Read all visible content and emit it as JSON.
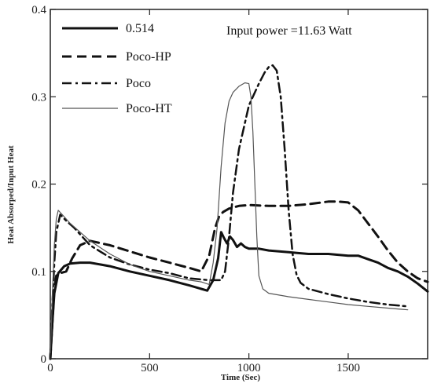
{
  "chart_data": {
    "type": "line",
    "title": "",
    "annotation": "Input power =11.63 Watt",
    "xlabel": "Time (Sec)",
    "ylabel": "Heat Absorped/Input Heat",
    "xlim": [
      0,
      1900
    ],
    "ylim": [
      0,
      0.4
    ],
    "xticks": [
      0,
      500,
      1000,
      1500
    ],
    "xtick_labels": [
      "0",
      "500",
      "1000",
      "1500"
    ],
    "yticks": [
      0,
      0.1,
      0.2,
      0.3,
      0.4
    ],
    "ytick_labels": [
      "0",
      "0.1",
      "0.2",
      "0.3",
      "0.4"
    ],
    "legend_position": "top-left",
    "grid": false,
    "series": [
      {
        "name": "0.514",
        "style": "solid-thick",
        "color": "#111111",
        "x": [
          0,
          10,
          20,
          40,
          70,
          100,
          150,
          200,
          300,
          400,
          500,
          600,
          700,
          760,
          790,
          820,
          845,
          860,
          875,
          890,
          905,
          920,
          940,
          960,
          980,
          1000,
          1050,
          1100,
          1200,
          1300,
          1400,
          1500,
          1550,
          1600,
          1650,
          1700,
          1750,
          1800,
          1850,
          1900
        ],
        "y": [
          0.0,
          0.04,
          0.075,
          0.098,
          0.106,
          0.109,
          0.11,
          0.11,
          0.106,
          0.1,
          0.095,
          0.09,
          0.084,
          0.08,
          0.078,
          0.09,
          0.115,
          0.145,
          0.138,
          0.132,
          0.14,
          0.136,
          0.128,
          0.132,
          0.128,
          0.126,
          0.126,
          0.124,
          0.122,
          0.12,
          0.12,
          0.118,
          0.118,
          0.114,
          0.11,
          0.104,
          0.1,
          0.094,
          0.086,
          0.077
        ]
      },
      {
        "name": "Poco-HP",
        "style": "dashed",
        "color": "#111111",
        "x": [
          0,
          10,
          20,
          30,
          50,
          80,
          110,
          150,
          200,
          300,
          400,
          500,
          600,
          700,
          760,
          800,
          830,
          850,
          870,
          900,
          950,
          1000,
          1100,
          1200,
          1300,
          1400,
          1450,
          1500,
          1550,
          1600,
          1650,
          1700,
          1750,
          1800,
          1850,
          1900
        ],
        "y": [
          0.0,
          0.04,
          0.08,
          0.095,
          0.098,
          0.1,
          0.115,
          0.13,
          0.135,
          0.13,
          0.123,
          0.116,
          0.11,
          0.104,
          0.1,
          0.118,
          0.15,
          0.163,
          0.168,
          0.172,
          0.175,
          0.176,
          0.175,
          0.175,
          0.177,
          0.18,
          0.18,
          0.179,
          0.17,
          0.155,
          0.14,
          0.124,
          0.11,
          0.1,
          0.092,
          0.088
        ]
      },
      {
        "name": "Poco",
        "style": "dash-dot",
        "color": "#111111",
        "x": [
          0,
          10,
          20,
          30,
          50,
          80,
          120,
          200,
          300,
          400,
          500,
          600,
          700,
          800,
          860,
          880,
          900,
          920,
          950,
          1000,
          1050,
          1080,
          1100,
          1120,
          1140,
          1160,
          1180,
          1200,
          1220,
          1240,
          1260,
          1300,
          1350,
          1400,
          1500,
          1600,
          1700,
          1800
        ],
        "y": [
          0.0,
          0.06,
          0.11,
          0.145,
          0.165,
          0.158,
          0.15,
          0.13,
          0.116,
          0.108,
          0.102,
          0.098,
          0.092,
          0.09,
          0.09,
          0.1,
          0.14,
          0.19,
          0.24,
          0.29,
          0.315,
          0.328,
          0.334,
          0.336,
          0.33,
          0.3,
          0.24,
          0.17,
          0.12,
          0.096,
          0.087,
          0.08,
          0.077,
          0.074,
          0.069,
          0.065,
          0.062,
          0.06
        ]
      },
      {
        "name": "Poco-HT",
        "style": "thin",
        "color": "#555555",
        "x": [
          0,
          10,
          20,
          30,
          40,
          60,
          100,
          150,
          200,
          300,
          400,
          500,
          600,
          700,
          760,
          800,
          820,
          840,
          860,
          880,
          900,
          920,
          950,
          980,
          1000,
          1010,
          1020,
          1030,
          1040,
          1050,
          1070,
          1100,
          1200,
          1300,
          1400,
          1500,
          1600,
          1700,
          1800
        ],
        "y": [
          0.0,
          0.07,
          0.13,
          0.16,
          0.17,
          0.165,
          0.155,
          0.145,
          0.135,
          0.12,
          0.108,
          0.1,
          0.095,
          0.09,
          0.088,
          0.085,
          0.11,
          0.15,
          0.22,
          0.27,
          0.295,
          0.305,
          0.312,
          0.316,
          0.315,
          0.3,
          0.26,
          0.2,
          0.14,
          0.095,
          0.08,
          0.075,
          0.071,
          0.068,
          0.065,
          0.062,
          0.06,
          0.058,
          0.056
        ]
      }
    ]
  }
}
